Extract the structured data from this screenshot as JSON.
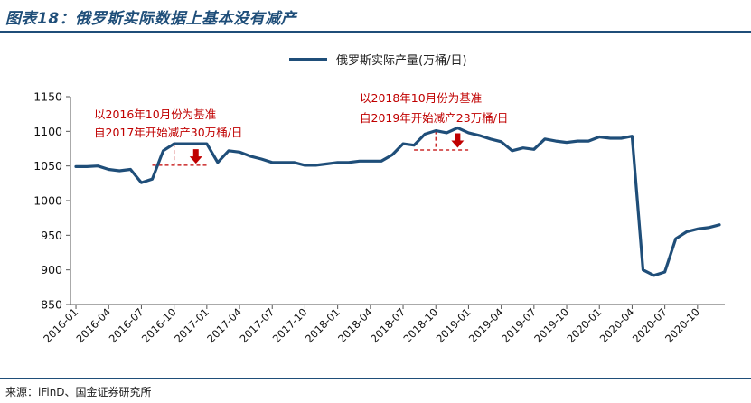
{
  "title": "图表18：俄罗斯实际数据上基本没有减产",
  "source": "来源：iFinD、国金证券研究所",
  "chart_data": {
    "type": "line",
    "ylim": [
      850,
      1150
    ],
    "yticks": [
      850,
      900,
      950,
      1000,
      1050,
      1100,
      1150
    ],
    "grid": false,
    "legend_position": "top-center",
    "series": [
      {
        "name": "俄罗斯实际产量(万桶/日)",
        "color": "#1f4e79",
        "categories": [
          "2016-01",
          "2016-02",
          "2016-03",
          "2016-04",
          "2016-05",
          "2016-06",
          "2016-07",
          "2016-08",
          "2016-09",
          "2016-10",
          "2016-11",
          "2016-12",
          "2017-01",
          "2017-02",
          "2017-03",
          "2017-04",
          "2017-05",
          "2017-06",
          "2017-07",
          "2017-08",
          "2017-09",
          "2017-10",
          "2017-11",
          "2017-12",
          "2018-01",
          "2018-02",
          "2018-03",
          "2018-04",
          "2018-05",
          "2018-06",
          "2018-07",
          "2018-08",
          "2018-09",
          "2018-10",
          "2018-11",
          "2018-12",
          "2019-01",
          "2019-02",
          "2019-03",
          "2019-04",
          "2019-05",
          "2019-06",
          "2019-07",
          "2019-08",
          "2019-09",
          "2019-10",
          "2019-11",
          "2019-12",
          "2020-01",
          "2020-02",
          "2020-03",
          "2020-04",
          "2020-05",
          "2020-06",
          "2020-07",
          "2020-08",
          "2020-09",
          "2020-10",
          "2020-11",
          "2020-12"
        ],
        "values": [
          1049,
          1049,
          1050,
          1045,
          1043,
          1045,
          1026,
          1031,
          1072,
          1082,
          1082,
          1082,
          1082,
          1055,
          1072,
          1070,
          1064,
          1060,
          1055,
          1055,
          1055,
          1051,
          1051,
          1053,
          1055,
          1055,
          1057,
          1057,
          1057,
          1066,
          1082,
          1080,
          1096,
          1101,
          1098,
          1105,
          1098,
          1094,
          1089,
          1085,
          1072,
          1076,
          1074,
          1089,
          1086,
          1084,
          1086,
          1086,
          1092,
          1090,
          1090,
          1093,
          900,
          892,
          897,
          945,
          955,
          959,
          961,
          965
        ]
      }
    ],
    "xticks": [
      "2016-01",
      "2016-04",
      "2016-07",
      "2016-10",
      "2017-01",
      "2017-04",
      "2017-07",
      "2017-10",
      "2018-01",
      "2018-04",
      "2018-07",
      "2018-10",
      "2019-01",
      "2019-04",
      "2019-07",
      "2019-10",
      "2020-01",
      "2020-04",
      "2020-07",
      "2020-10"
    ],
    "annotations": [
      {
        "lines": [
          "以2016年10月份为基准",
          "自2017年开始减产30万桶/日"
        ],
        "baseline_month": "2016-10",
        "baseline_value": 1051,
        "dash_from": "2016-08",
        "dash_to": "2017-01",
        "arrow_month": "2016-12"
      },
      {
        "lines": [
          "以2018年10月份为基准",
          "自2019年开始减产23万桶/日"
        ],
        "baseline_month": "2018-10",
        "baseline_value": 1073,
        "dash_from": "2018-08",
        "dash_to": "2019-01",
        "arrow_month": "2018-12"
      }
    ]
  }
}
